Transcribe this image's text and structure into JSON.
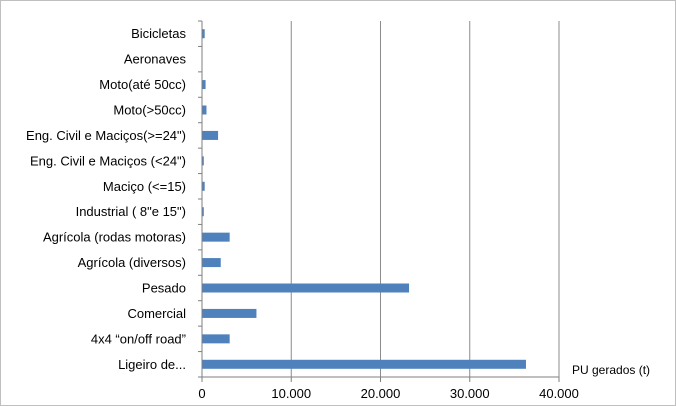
{
  "chart_data": {
    "type": "bar",
    "orientation": "horizontal",
    "title": "",
    "xlabel": "PU gerados (t)",
    "ylabel": "",
    "xlim": [
      0,
      40000
    ],
    "x_ticks": [
      "0",
      "10.000",
      "20.000",
      "30.000",
      "40.000"
    ],
    "grid": "vertical",
    "legend": "none",
    "colors": {
      "bar": "#4f81bd",
      "grid": "#8c8c8c",
      "frame": "#bfbfbf"
    },
    "categories": [
      "Bicicletas",
      "Aeronaves",
      "Moto(até 50cc)",
      "Moto(>50cc)",
      "Eng. Civil e Maciços(>=24\")",
      "Eng. Civil e Maciços (<24\")",
      "Maciço (<=15)",
      "Industrial ( 8\"e 15\")",
      "Agrícola (rodas motoras)",
      "Agrícola (diversos)",
      "Pesado",
      "Comercial",
      "4x4 “on/off road”",
      "Ligeiro de..."
    ],
    "values": [
      300,
      0,
      400,
      500,
      1800,
      200,
      300,
      200,
      3100,
      2100,
      23200,
      6100,
      3100,
      36300
    ]
  }
}
